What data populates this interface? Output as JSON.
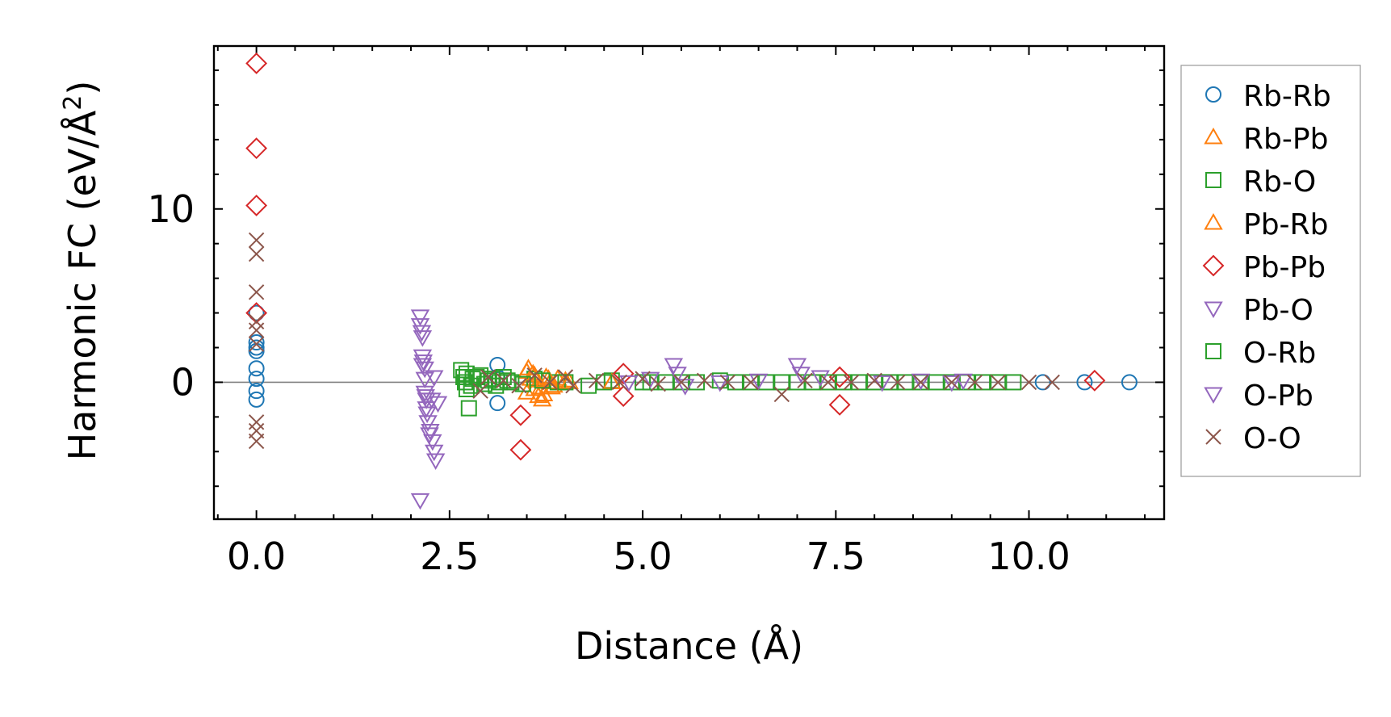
{
  "chart_data": {
    "type": "scatter",
    "xlabel": "Distance (Å)",
    "ylabel_main": "Harmonic FC (eV/Å",
    "ylabel_sup": "2",
    "ylabel_close": ")",
    "xlim": [
      -0.55,
      11.75
    ],
    "ylim": [
      -7.9,
      19.4
    ],
    "xticks": [
      0.0,
      2.5,
      5.0,
      7.5,
      10.0
    ],
    "xtick_labels": [
      "0.0",
      "2.5",
      "5.0",
      "7.5",
      "10.0"
    ],
    "yticks": [
      0,
      10
    ],
    "ytick_labels": [
      "0",
      "10"
    ],
    "reference_line_y": 0,
    "grid": false,
    "legend_position": "outside-right",
    "series": [
      {
        "name": "Rb-Rb",
        "marker": "circle",
        "color": "#1f77b4",
        "x": [
          0,
          0,
          0,
          0,
          0,
          0,
          0,
          0,
          3.12,
          3.12,
          3.12,
          10.18,
          10.72,
          11.3
        ],
        "y": [
          4.0,
          2.3,
          2.0,
          1.8,
          0.8,
          0.2,
          -0.5,
          -1.0,
          1.0,
          0.3,
          -1.2,
          0,
          0,
          0
        ]
      },
      {
        "name": "Rb-Pb",
        "marker": "triangle-up",
        "color": "#ff7f0e",
        "x": [
          3.5,
          3.55,
          3.6,
          3.65,
          3.7,
          3.75,
          3.5,
          3.6,
          3.8,
          3.85,
          3.9,
          4.0,
          4.6
        ],
        "y": [
          0.6,
          0.2,
          -0.4,
          -0.8,
          -1.0,
          0.3,
          -0.6,
          0.4,
          0.0,
          -0.2,
          0.2,
          0.1,
          0.0
        ]
      },
      {
        "name": "Rb-O",
        "marker": "square",
        "color": "#2ca02c",
        "x": [
          2.65,
          2.68,
          2.7,
          2.72,
          2.75,
          2.8,
          2.9,
          3.0,
          3.1,
          3.2,
          3.3,
          3.6,
          3.9,
          4.3,
          4.6,
          5.0,
          5.3,
          5.7,
          6.0,
          6.4,
          6.8,
          7.2,
          7.6,
          8.0,
          8.4,
          8.8,
          9.2,
          9.6
        ],
        "y": [
          0.7,
          0.3,
          0.0,
          -0.4,
          -1.5,
          0.2,
          0.4,
          0.1,
          -0.2,
          0.3,
          0.0,
          0.2,
          0.0,
          -0.2,
          0.1,
          0.0,
          0.0,
          0.0,
          0.1,
          0.0,
          0.0,
          0.0,
          0.0,
          0.0,
          0.0,
          0.0,
          0.0,
          0.0
        ]
      },
      {
        "name": "Pb-Rb",
        "marker": "triangle-up",
        "color": "#ff7f0e",
        "x": [
          3.52,
          3.58,
          3.62,
          3.68,
          3.72,
          3.78,
          3.82,
          4.05,
          4.6
        ],
        "y": [
          0.8,
          0.5,
          0.1,
          -0.3,
          -0.7,
          0.2,
          -0.3,
          0.0,
          0.0
        ]
      },
      {
        "name": "Pb-Pb",
        "marker": "diamond",
        "color": "#d62728",
        "x": [
          0,
          0,
          0,
          0,
          3.42,
          3.42,
          4.75,
          4.75,
          7.55,
          7.55,
          10.85
        ],
        "y": [
          18.4,
          13.5,
          10.2,
          4.0,
          -1.9,
          -3.9,
          0.5,
          -0.8,
          0.3,
          -1.3,
          0.1
        ]
      },
      {
        "name": "Pb-O",
        "marker": "triangle-down",
        "color": "#9467bd",
        "x": [
          2.12,
          2.12,
          2.15,
          2.15,
          2.15,
          2.18,
          2.18,
          2.2,
          2.2,
          2.22,
          2.25,
          2.28,
          2.3,
          2.32,
          2.35,
          2.12,
          2.18
        ],
        "y": [
          3.8,
          3.3,
          2.6,
          1.5,
          1.0,
          0.8,
          -0.6,
          -1.0,
          -1.5,
          -2.3,
          -2.8,
          -3.4,
          -4.0,
          -4.5,
          -1.2,
          -6.8,
          0.2
        ]
      },
      {
        "name": "O-Rb",
        "marker": "square",
        "color": "#2ca02c",
        "x": [
          2.72,
          2.78,
          2.85,
          2.95,
          3.05,
          3.15,
          3.25,
          3.45,
          3.7,
          4.0,
          4.5,
          5.1,
          5.5,
          6.2,
          6.6,
          7.0,
          7.4,
          7.8,
          8.2,
          8.6,
          9.0,
          9.4,
          9.8
        ],
        "y": [
          0.5,
          -0.2,
          0.3,
          -0.1,
          0.2,
          0.0,
          0.1,
          -0.1,
          0.1,
          0.0,
          0.0,
          0.0,
          0.0,
          0.0,
          0.0,
          0.0,
          0.0,
          0.0,
          0.0,
          0.0,
          0.0,
          0.0,
          0.0
        ]
      },
      {
        "name": "O-Pb",
        "marker": "triangle-down",
        "color": "#9467bd",
        "x": [
          2.14,
          2.16,
          2.19,
          2.21,
          2.24,
          2.27,
          2.3,
          4.82,
          5.1,
          5.4,
          5.45,
          5.55,
          6.0,
          6.5,
          7.0,
          7.05,
          7.3,
          8.1,
          8.6,
          9.0,
          9.15
        ],
        "y": [
          2.9,
          1.2,
          -0.8,
          -1.8,
          -3.0,
          -1.0,
          0.3,
          0.0,
          0.2,
          1.0,
          0.5,
          -0.2,
          0.0,
          0.1,
          1.0,
          0.5,
          0.3,
          0.0,
          0.1,
          0.0,
          0.1
        ]
      },
      {
        "name": "O-O",
        "marker": "x",
        "color": "#8c564b",
        "x": [
          0,
          0,
          0,
          0,
          0,
          0,
          0,
          0,
          0,
          2.9,
          3.0,
          3.2,
          3.4,
          3.6,
          3.8,
          4.0,
          4.1,
          4.4,
          4.7,
          5.0,
          5.2,
          5.5,
          5.8,
          6.1,
          6.4,
          6.8,
          7.1,
          7.4,
          7.7,
          8.0,
          8.3,
          8.6,
          9.0,
          9.3,
          9.6,
          10.0,
          10.3
        ],
        "y": [
          8.2,
          7.4,
          5.2,
          3.5,
          3.0,
          2.2,
          -2.3,
          -2.8,
          -3.4,
          -0.5,
          0.3,
          0.1,
          -0.2,
          0.4,
          0.0,
          0.3,
          -0.2,
          0.1,
          0.0,
          0.2,
          -0.1,
          0.0,
          0.1,
          0.0,
          0.0,
          -0.7,
          0.1,
          0.0,
          0.0,
          0.1,
          0.0,
          0.0,
          0.0,
          0.0,
          0.0,
          0.0,
          0.0
        ]
      }
    ]
  }
}
